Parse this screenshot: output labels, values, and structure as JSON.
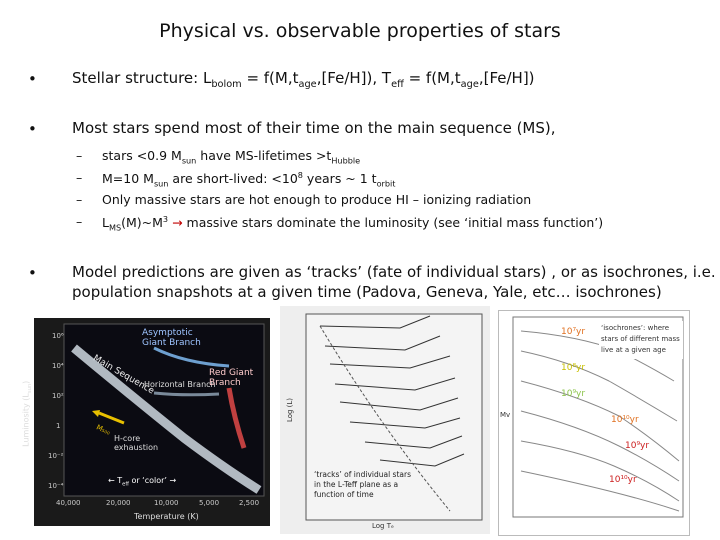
{
  "title": "Physical vs. observable properties of stars",
  "bullets": {
    "b1": {
      "prefix": "Stellar structure: L",
      "sub1": "bolom",
      "mid1": " = f(M,t",
      "sub2": "age",
      "mid2": ",[Fe/H]), T",
      "sub3": "eff",
      "mid3": " = f(M,t",
      "sub4": "age",
      "end": ",[Fe/H])"
    },
    "b2": "Most stars spend most of their time on the main sequence (MS),",
    "b3_line1": "Model predictions are given as ‘tracks’ (fate of individual stars) , or as isochrones, i.e.",
    "b3_line2": "population snapshots at a given time (Padova, Geneva, Yale, etc… isochrones)"
  },
  "subbullets": {
    "s1": {
      "a": "stars <0.9 M",
      "sub": "sun",
      "b": " have MS-lifetimes >t",
      "sub2": "Hubble"
    },
    "s2": {
      "a": "M=10 M",
      "sub": "sun",
      "b": " are short-lived: <10",
      "sup": "8",
      "c": " years ~ 1  t",
      "sub2": "orbit"
    },
    "s3": "Only massive stars are hot enough to produce HI – ionizing radiation",
    "s4": {
      "a": "L",
      "sub": "MS",
      "b": "(M)~M",
      "sup": "3",
      "c": " massive stars dominate the luminosity (see ‘initial mass function’)"
    }
  },
  "hr_diagram": {
    "agb": "Asymptotic\nGiant Branch",
    "ms": "Main Sequence",
    "hb": "Horizontal Branch",
    "rgb": "Red Giant\nBranch",
    "core": "H-core\nexhaustion",
    "mass": "M₅₀₀",
    "teff_note": "← T",
    "teff_sub": "eff",
    "teff_end": " or ‘color’ →",
    "ylabel": "Luminosity (L",
    "ylabel_sub": "sun",
    "ylabel_end": ")",
    "xlabel": "Temperature (K)",
    "yticks": [
      "10⁶",
      "10⁴",
      "10²",
      "1",
      "10⁻²",
      "10⁻⁴"
    ],
    "xticks": [
      "40,000",
      "20,000",
      "10,000",
      "5,000",
      "2,500"
    ]
  },
  "tracks": {
    "caption1": "‘tracks’ of individual stars",
    "caption2": "in the L-Teff plane as a",
    "caption3": "function of time",
    "ylabel": "Log (L)",
    "xlabel": "Log Tₑ"
  },
  "isochrones": {
    "label_lines": [
      "‘isochrones’: where",
      "stars of different mass",
      "live at a given age"
    ],
    "ages": [
      "10⁷yr",
      "10⁸yr",
      "10⁹yr",
      "10¹⁰yr",
      "10⁹yr",
      "10¹⁰yr"
    ],
    "ylabel": "Mv"
  }
}
